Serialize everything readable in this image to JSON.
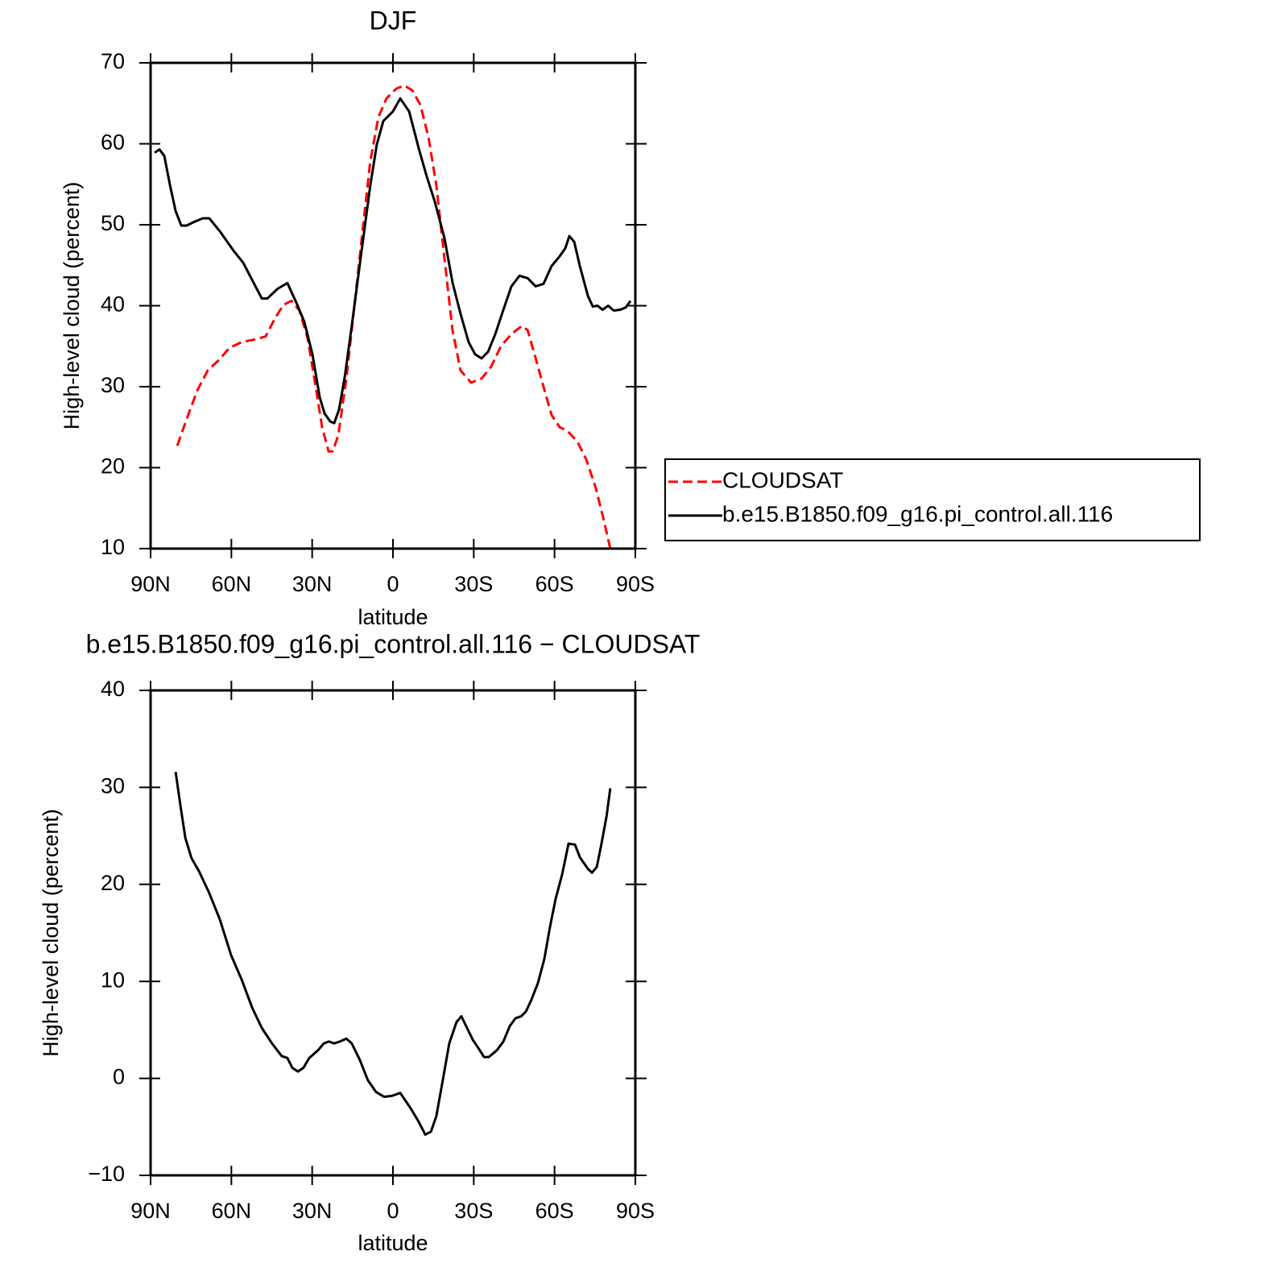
{
  "chart_data": [
    {
      "type": "line",
      "title": "DJF",
      "xlabel": "latitude",
      "ylabel": "High-level cloud (percent)",
      "xlim": [
        90,
        -90
      ],
      "xticks": [
        {
          "value": 90,
          "label": "90N"
        },
        {
          "value": 60,
          "label": "60N"
        },
        {
          "value": 30,
          "label": "30N"
        },
        0,
        {
          "value": -30,
          "label": "30S"
        },
        {
          "value": -60,
          "label": "60S"
        },
        {
          "value": -90,
          "label": "90S"
        }
      ],
      "ylim": [
        10,
        70
      ],
      "yticks": [
        10,
        20,
        30,
        40,
        50,
        60,
        70
      ],
      "legend": "right",
      "series": [
        {
          "name": "CLOUDSAT",
          "color": "#ff0000",
          "linestyle": "dashed",
          "x": [
            80.1,
            76.6,
            72.7,
            68.8,
            64.6,
            60.7,
            56.2,
            51.7,
            47.3,
            43.7,
            40.7,
            37.7,
            34.7,
            31.7,
            28.7,
            26.3,
            23.9,
            22.4,
            20.3,
            17.3,
            14.3,
            11.4,
            8.4,
            5.4,
            2.4,
            -1.2,
            -4.2,
            -7.2,
            -10.2,
            -13.2,
            -16.1,
            -19.1,
            -22.1,
            -25.1,
            -29.0,
            -32.9,
            -36.5,
            -40.1,
            -44.0,
            -47.8,
            -50.0,
            -53.0,
            -55.9,
            -58.9,
            -61.9,
            -64.9,
            -68.5,
            -71.8,
            -75.3,
            -78.3,
            -80.7
          ],
          "values": [
            22.7,
            26.0,
            29.5,
            32.0,
            33.3,
            34.8,
            35.5,
            35.8,
            36.2,
            38.5,
            40.1,
            40.6,
            39.4,
            36.0,
            30.0,
            25.0,
            22.0,
            22.0,
            24.0,
            31.0,
            40.0,
            48.9,
            57.9,
            63.3,
            65.6,
            66.8,
            67.2,
            66.6,
            64.8,
            60.8,
            54.9,
            45.9,
            37.0,
            32.0,
            30.5,
            31.0,
            32.5,
            35.0,
            36.5,
            37.5,
            37.0,
            33.5,
            30.0,
            26.5,
            25.0,
            24.5,
            23.2,
            21.0,
            17.5,
            13.5,
            10.0
          ]
        },
        {
          "name": "b.e15.B1850.f09_g16.pi_control.all.116",
          "color": "#000000",
          "linestyle": "solid",
          "x": [
            88.5,
            86.7,
            84.9,
            82.8,
            80.7,
            78.6,
            76.6,
            74.2,
            70.6,
            68.2,
            64.3,
            59.2,
            55.6,
            51.7,
            48.7,
            46.6,
            42.8,
            39.2,
            35.9,
            32.9,
            29.9,
            27.2,
            25.4,
            23.3,
            21.8,
            20.0,
            17.9,
            15.3,
            12.0,
            8.4,
            6.0,
            3.6,
            0,
            -2.7,
            -6.0,
            -9.6,
            -12.6,
            -15.5,
            -19.1,
            -22.1,
            -25.1,
            -28.1,
            -30.5,
            -32.9,
            -35.3,
            -38.0,
            -41.0,
            -44.0,
            -47.0,
            -50.0,
            -53.0,
            -55.9,
            -58.9,
            -61.9,
            -64.0,
            -65.5,
            -67.3,
            -69.4,
            -72.4,
            -74.2,
            -76.0,
            -77.8,
            -79.9,
            -82.0,
            -84.4,
            -86.5,
            -88.2
          ],
          "values": [
            58.9,
            59.3,
            58.5,
            54.9,
            51.7,
            49.9,
            49.9,
            50.3,
            50.8,
            50.8,
            49.2,
            46.8,
            45.3,
            42.8,
            40.9,
            40.9,
            42.1,
            42.8,
            40.4,
            38.0,
            34.0,
            28.7,
            26.7,
            25.7,
            25.5,
            27.2,
            31.2,
            37.5,
            45.9,
            54.9,
            59.9,
            62.8,
            64.0,
            65.6,
            64.0,
            59.4,
            55.9,
            52.9,
            48.4,
            42.9,
            39.0,
            35.5,
            34.0,
            33.5,
            34.3,
            36.5,
            39.5,
            42.4,
            43.7,
            43.4,
            42.4,
            42.7,
            44.9,
            46.1,
            47.1,
            48.6,
            47.9,
            44.9,
            41.2,
            39.9,
            40.0,
            39.5,
            40.0,
            39.4,
            39.5,
            39.8,
            40.6
          ]
        }
      ]
    },
    {
      "type": "line",
      "title": "b.e15.B1850.f09_g16.pi_control.all.116 − CLOUDSAT",
      "xlabel": "latitude",
      "ylabel": "High-level cloud (percent)",
      "xlim": [
        90,
        -90
      ],
      "xticks": [
        {
          "value": 90,
          "label": "90N"
        },
        {
          "value": 60,
          "label": "60N"
        },
        {
          "value": 30,
          "label": "30N"
        },
        0,
        {
          "value": -30,
          "label": "30S"
        },
        {
          "value": -60,
          "label": "60S"
        },
        {
          "value": -90,
          "label": "90S"
        }
      ],
      "ylim": [
        -10,
        40
      ],
      "yticks": [
        {
          "value": -10,
          "label": "−10"
        },
        0,
        10,
        20,
        30,
        40
      ],
      "color": "#000000",
      "x": [
        80.7,
        78.9,
        77.1,
        74.8,
        72.1,
        68.2,
        64.3,
        60.1,
        56.2,
        52.3,
        48.7,
        44.9,
        41.3,
        39.2,
        37.4,
        35.3,
        33.2,
        31.1,
        27.8,
        25.7,
        23.9,
        21.8,
        19.7,
        17.3,
        15.3,
        12.3,
        9.3,
        6.3,
        3.3,
        0.3,
        -2.7,
        -6.6,
        -9.6,
        -12.0,
        -14.1,
        -16.1,
        -18.5,
        -20.9,
        -23.6,
        -25.4,
        -27.5,
        -29.6,
        -32.0,
        -33.8,
        -35.6,
        -38.6,
        -41.0,
        -43.4,
        -45.5,
        -47.6,
        -49.4,
        -51.4,
        -53.8,
        -56.2,
        -58.3,
        -60.4,
        -62.8,
        -65.2,
        -67.6,
        -69.4,
        -72.4,
        -73.9,
        -75.7,
        -77.5,
        -79.3,
        -80.7
      ],
      "values": [
        31.6,
        28.1,
        24.8,
        22.7,
        21.4,
        19.1,
        16.4,
        12.7,
        10.2,
        7.3,
        5.2,
        3.6,
        2.3,
        2.1,
        1.1,
        0.7,
        1.1,
        2.1,
        2.9,
        3.6,
        3.8,
        3.6,
        3.8,
        4.1,
        3.6,
        1.9,
        -0.2,
        -1.4,
        -1.9,
        -1.8,
        -1.5,
        -3.1,
        -4.5,
        -5.8,
        -5.5,
        -3.9,
        -0.2,
        3.6,
        5.8,
        6.4,
        5.2,
        4.0,
        3.0,
        2.2,
        2.2,
        2.9,
        3.8,
        5.4,
        6.2,
        6.4,
        6.9,
        8.1,
        9.8,
        12.3,
        15.6,
        18.5,
        21.0,
        24.2,
        24.1,
        22.8,
        21.6,
        21.2,
        21.8,
        24.3,
        27.0,
        29.9
      ]
    }
  ]
}
